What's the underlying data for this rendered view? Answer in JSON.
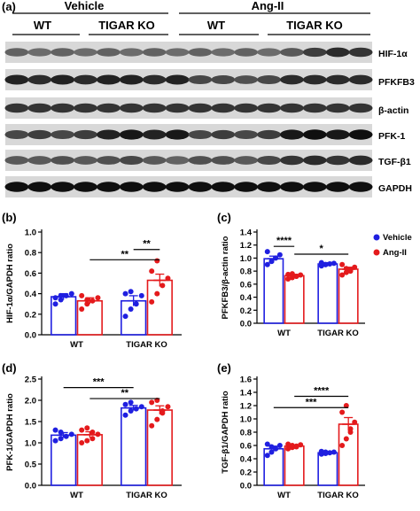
{
  "blot": {
    "panel_label": "(a)",
    "conditions": [
      "Vehicle",
      "Ang-II"
    ],
    "groups": [
      "WT",
      "TIGAR KO",
      "WT",
      "TIGAR KO"
    ],
    "bands": [
      "HIF-1α",
      "PFKFB3",
      "β-actin",
      "PFK-1",
      "TGF-β1",
      "GAPDH"
    ],
    "band_intensity": [
      [
        0.55,
        0.5,
        0.55,
        0.5,
        0.55,
        0.5,
        0.55,
        0.5,
        0.55,
        0.5,
        0.55,
        0.5,
        0.6,
        0.75,
        0.85,
        0.8
      ],
      [
        0.9,
        0.85,
        0.9,
        0.85,
        0.9,
        0.9,
        0.85,
        0.9,
        0.7,
        0.7,
        0.65,
        0.7,
        0.85,
        0.85,
        0.85,
        0.85
      ],
      [
        0.8,
        0.8,
        0.8,
        0.8,
        0.8,
        0.8,
        0.8,
        0.8,
        0.8,
        0.8,
        0.8,
        0.8,
        0.8,
        0.8,
        0.8,
        0.8
      ],
      [
        0.7,
        0.75,
        0.7,
        0.75,
        0.9,
        0.95,
        0.9,
        0.95,
        0.7,
        0.75,
        0.7,
        0.75,
        0.95,
        1.0,
        0.95,
        1.0
      ],
      [
        0.6,
        0.6,
        0.65,
        0.6,
        0.65,
        0.7,
        0.6,
        0.55,
        0.65,
        0.65,
        0.6,
        0.7,
        0.8,
        0.85,
        0.8,
        0.85
      ],
      [
        1.0,
        1.0,
        1.0,
        1.0,
        1.0,
        1.0,
        1.0,
        1.0,
        1.0,
        1.0,
        1.0,
        1.0,
        1.0,
        1.0,
        1.0,
        1.0
      ]
    ]
  },
  "legend": {
    "items": [
      {
        "label": "Vehicle",
        "color": "#1f1fe0"
      },
      {
        "label": "Ang-II",
        "color": "#e41a1c"
      }
    ]
  },
  "chart_data": [
    {
      "panel_label": "(b)",
      "type": "bar",
      "categories": [
        "WT",
        "TIGAR KO"
      ],
      "ylabel": "HIF-1α/GAPDH ratio",
      "ylim": [
        0,
        1.0
      ],
      "yticks": [
        "0.0",
        "0.2",
        "0.4",
        "0.6",
        "0.8",
        "1.0"
      ],
      "series": [
        {
          "name": "Vehicle",
          "color": "#1f1fe0",
          "values": [
            0.37,
            0.33
          ],
          "sem": [
            0.03,
            0.05
          ],
          "points": [
            [
              0.3,
              0.34,
              0.38,
              0.4,
              0.36,
              0.38
            ],
            [
              0.18,
              0.25,
              0.3,
              0.38,
              0.4,
              0.42
            ]
          ]
        },
        {
          "name": "Ang-II",
          "color": "#e41a1c",
          "values": [
            0.33,
            0.53
          ],
          "sem": [
            0.03,
            0.06
          ],
          "points": [
            [
              0.25,
              0.3,
              0.33,
              0.36,
              0.38,
              0.34
            ],
            [
              0.32,
              0.4,
              0.48,
              0.55,
              0.62,
              0.72
            ]
          ]
        }
      ],
      "significance": [
        {
          "label": "**",
          "from": "Vehicle-TIGAR KO",
          "to": "Ang-II-TIGAR KO",
          "y": 0.83
        },
        {
          "label": "**",
          "from": "Ang-II-WT",
          "to": "Ang-II-TIGAR KO",
          "y": 0.73
        }
      ]
    },
    {
      "panel_label": "(c)",
      "type": "bar",
      "categories": [
        "WT",
        "TIGAR KO"
      ],
      "ylabel": "PFKFB3/β-actin ratio",
      "ylim": [
        0,
        1.4
      ],
      "yticks": [
        "0.0",
        "0.2",
        "0.4",
        "0.6",
        "0.8",
        "1.0",
        "1.2",
        "1.4"
      ],
      "series": [
        {
          "name": "Vehicle",
          "color": "#1f1fe0",
          "values": [
            0.99,
            0.91
          ],
          "sem": [
            0.04,
            0.02
          ],
          "points": [
            [
              0.9,
              0.95,
              1.0,
              1.05,
              1.1,
              0.95
            ],
            [
              0.88,
              0.9,
              0.91,
              0.92,
              0.93,
              0.9
            ]
          ]
        },
        {
          "name": "Ang-II",
          "color": "#e41a1c",
          "values": [
            0.73,
            0.83
          ],
          "sem": [
            0.02,
            0.03
          ],
          "points": [
            [
              0.68,
              0.7,
              0.72,
              0.74,
              0.75,
              0.76,
              0.72
            ],
            [
              0.74,
              0.78,
              0.82,
              0.86,
              0.9,
              0.84,
              0.8
            ]
          ]
        }
      ],
      "significance": [
        {
          "label": "****",
          "from": "Vehicle-WT",
          "to": "Ang-II-WT",
          "y": 1.18
        },
        {
          "label": "*",
          "from": "Ang-II-WT",
          "to": "Ang-II-TIGAR KO",
          "y": 1.06
        }
      ]
    },
    {
      "panel_label": "(d)",
      "type": "bar",
      "categories": [
        "WT",
        "TIGAR KO"
      ],
      "ylabel": "PFK-1/GAPDH ratio",
      "ylim": [
        0,
        2.5
      ],
      "yticks": [
        "0.0",
        "0.5",
        "1.0",
        "1.5",
        "2.0",
        "2.5"
      ],
      "series": [
        {
          "name": "Vehicle",
          "color": "#1f1fe0",
          "values": [
            1.18,
            1.82
          ],
          "sem": [
            0.06,
            0.06
          ],
          "points": [
            [
              1.05,
              1.1,
              1.15,
              1.2,
              1.3,
              1.25
            ],
            [
              1.65,
              1.75,
              1.8,
              1.85,
              1.9,
              1.95
            ]
          ]
        },
        {
          "name": "Ang-II",
          "color": "#e41a1c",
          "values": [
            1.19,
            1.77
          ],
          "sem": [
            0.07,
            0.1
          ],
          "points": [
            [
              1.0,
              1.05,
              1.1,
              1.2,
              1.3,
              1.35,
              1.25
            ],
            [
              1.4,
              1.55,
              1.75,
              1.85,
              1.95,
              2.0,
              1.7
            ]
          ]
        }
      ],
      "significance": [
        {
          "label": "***",
          "from": "Vehicle-WT",
          "to": "Vehicle-TIGAR KO",
          "y": 2.3
        },
        {
          "label": "**",
          "from": "Ang-II-WT",
          "to": "Ang-II-TIGAR KO",
          "y": 2.04
        }
      ]
    },
    {
      "panel_label": "(e)",
      "type": "bar",
      "categories": [
        "WT",
        "TIGAR KO"
      ],
      "ylabel": "TGF-β1/GAPDH ratio",
      "ylim": [
        0,
        1.6
      ],
      "yticks": [
        "0.0",
        "0.2",
        "0.4",
        "0.6",
        "0.8",
        "1.0",
        "1.2",
        "1.4",
        "1.6"
      ],
      "series": [
        {
          "name": "Vehicle",
          "color": "#1f1fe0",
          "values": [
            0.55,
            0.49
          ],
          "sem": [
            0.04,
            0.01
          ],
          "points": [
            [
              0.45,
              0.5,
              0.55,
              0.6,
              0.62,
              0.58
            ],
            [
              0.47,
              0.48,
              0.49,
              0.5,
              0.51,
              0.5
            ]
          ]
        },
        {
          "name": "Ang-II",
          "color": "#e41a1c",
          "values": [
            0.59,
            0.92
          ],
          "sem": [
            0.02,
            0.1
          ],
          "points": [
            [
              0.55,
              0.57,
              0.59,
              0.61,
              0.62,
              0.6,
              0.58
            ],
            [
              0.6,
              0.7,
              0.85,
              0.95,
              1.1,
              1.2,
              0.8
            ]
          ]
        }
      ],
      "significance": [
        {
          "label": "****",
          "from": "Ang-II-WT",
          "to": "Ang-II-TIGAR KO",
          "y": 1.34
        },
        {
          "label": "***",
          "from": "Vehicle-WT",
          "to": "Ang-II-TIGAR KO",
          "y": 1.17
        }
      ]
    }
  ]
}
